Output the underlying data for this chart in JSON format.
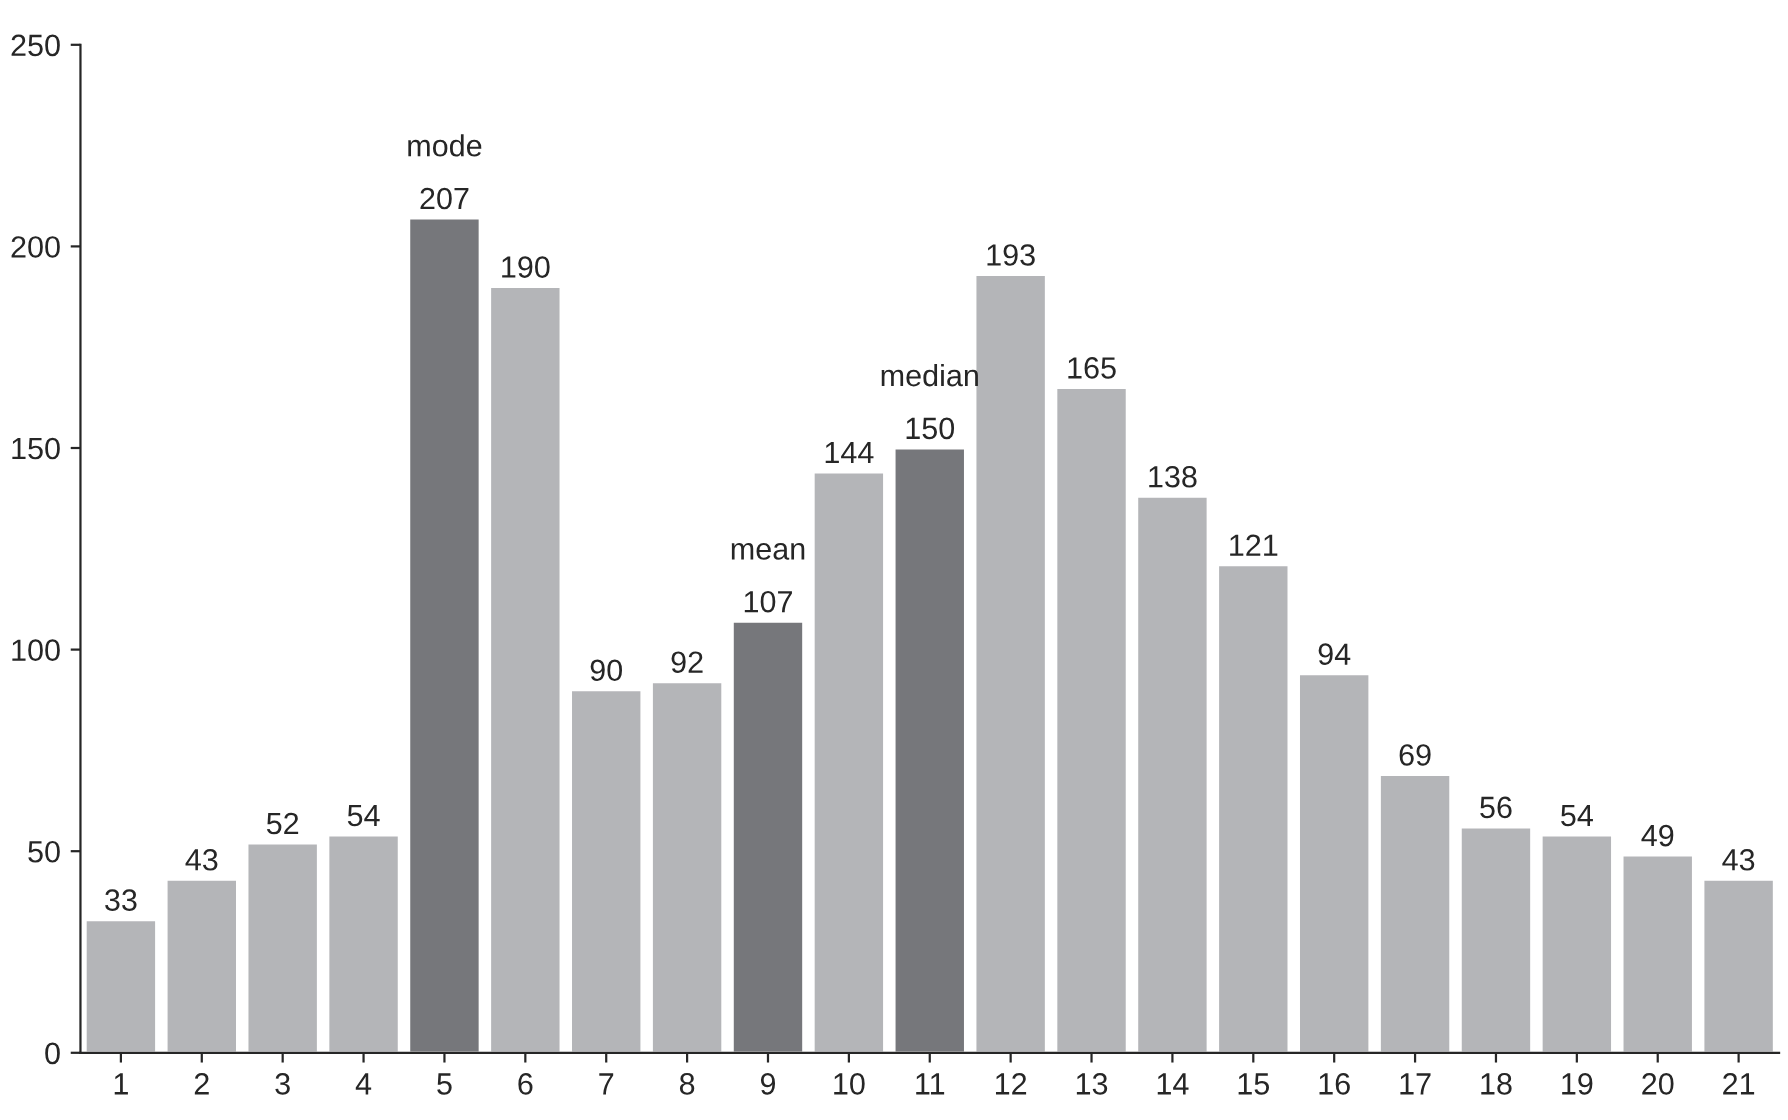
{
  "chart_data": {
    "type": "bar",
    "categories": [
      "1",
      "2",
      "3",
      "4",
      "5",
      "6",
      "7",
      "8",
      "9",
      "10",
      "11",
      "12",
      "13",
      "14",
      "15",
      "16",
      "17",
      "18",
      "19",
      "20",
      "21"
    ],
    "values": [
      33,
      43,
      52,
      54,
      207,
      190,
      90,
      92,
      107,
      144,
      150,
      193,
      165,
      138,
      121,
      94,
      69,
      56,
      54,
      49,
      43
    ],
    "colors": [
      "#b4b5b8",
      "#b4b5b8",
      "#b4b5b8",
      "#b4b5b8",
      "#76777b",
      "#b4b5b8",
      "#b4b5b8",
      "#b4b5b8",
      "#76777b",
      "#b4b5b8",
      "#76777b",
      "#b4b5b8",
      "#b4b5b8",
      "#b4b5b8",
      "#b4b5b8",
      "#b4b5b8",
      "#b4b5b8",
      "#b4b5b8",
      "#b4b5b8",
      "#b4b5b8",
      "#b4b5b8"
    ],
    "ylim": [
      0,
      250
    ],
    "yticks": [
      0,
      50,
      100,
      150,
      200,
      250
    ],
    "data_labels": true,
    "grid": false,
    "annotations": [
      {
        "text": "mode",
        "x": "5",
        "y": 207
      },
      {
        "text": "mean",
        "x": "9",
        "y": 107
      },
      {
        "text": "median",
        "x": "11",
        "y": 150
      }
    ]
  }
}
